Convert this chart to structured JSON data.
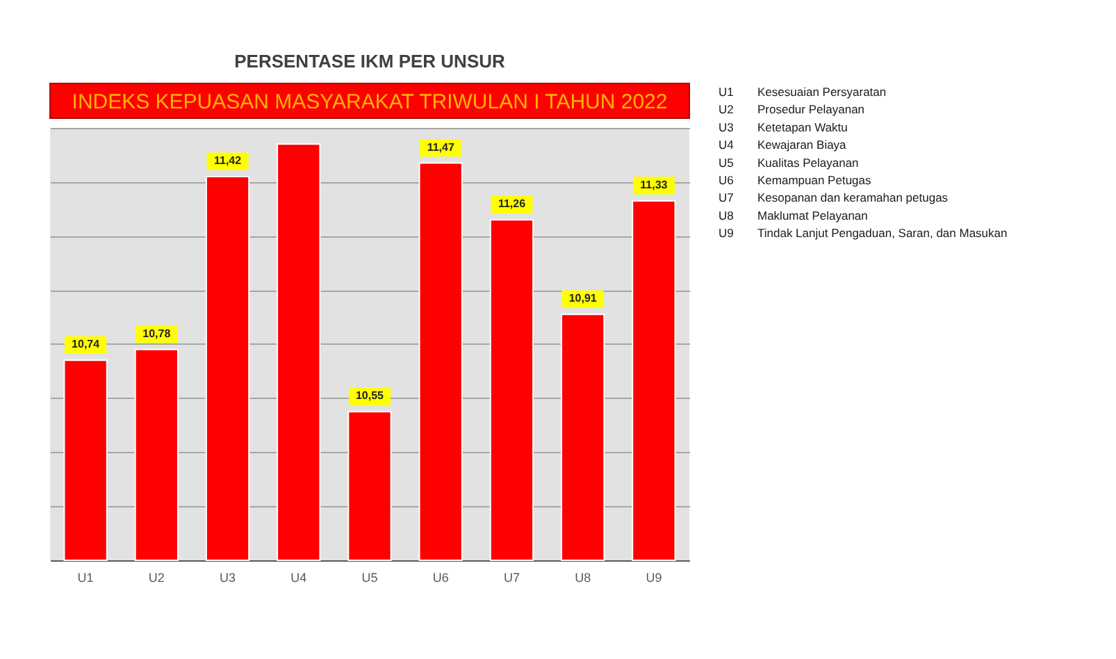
{
  "chart_data": {
    "type": "bar",
    "title": "PERSENTASE IKM PER UNSUR",
    "subtitle": "INDEKS KEPUASAN MASYARAKAT TRIWULAN I TAHUN 2022",
    "categories": [
      "U1",
      "U2",
      "U3",
      "U4",
      "U5",
      "U6",
      "U7",
      "U8",
      "U9"
    ],
    "values": [
      10.74,
      10.78,
      11.42,
      11.54,
      10.55,
      11.47,
      11.26,
      10.91,
      11.33
    ],
    "value_labels": [
      "10,74",
      "10,78",
      "11,42",
      null,
      "10,55",
      "11,47",
      "11,26",
      "10,91",
      "11,33"
    ],
    "color": "#ff0000",
    "ylim": [
      10,
      11.6
    ],
    "yticks": [
      {
        "value": 10,
        "label": null
      },
      {
        "value": 10.2,
        "label": null
      },
      {
        "value": 10.4,
        "label": null
      },
      {
        "value": 10.6,
        "label": null
      },
      {
        "value": 10.8,
        "label": null
      },
      {
        "value": 11,
        "label": null
      },
      {
        "value": 11.2,
        "label": null
      },
      {
        "value": 11.4,
        "label": null
      },
      {
        "value": 11.6,
        "label": null
      }
    ],
    "tick_labels": "x",
    "grid": "y",
    "annotations": [
      "U1",
      "Kesesuaian Persyaratan",
      "U2",
      "Prosedur Pelayanan",
      "U3",
      "Ketetapan Waktu",
      "U4",
      "Kewajaran Biaya",
      "U5",
      "Kualitas Pelayanan",
      "U6",
      "Kemampuan Petugas",
      "U7",
      "Kesopanan dan keramahan petugas",
      "U8",
      "Maklumat Pelayanan",
      "U9",
      "Tindak Lanjut Pengaduan, Saran, dan Masukan"
    ]
  }
}
